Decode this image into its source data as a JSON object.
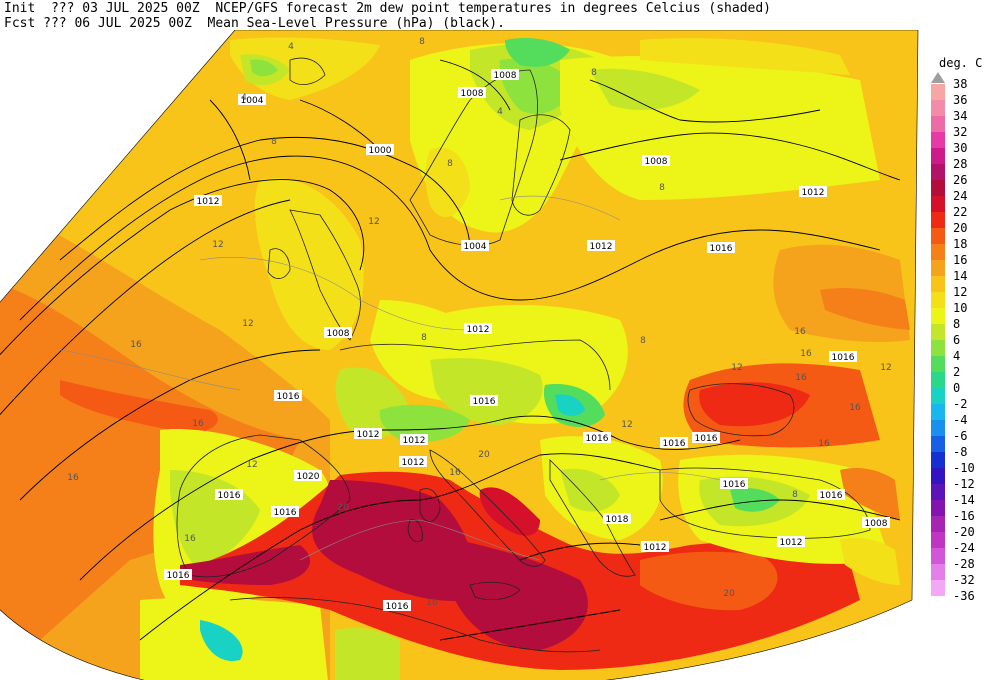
{
  "header": {
    "line1": "Init  ??? 03 JUL 2025 00Z  NCEP/GFS forecast 2m dew point temperatures in degrees Celcius (shaded)",
    "line2": "Fcst ??? 06 JUL 2025 00Z  Mean Sea-Level Pressure (hPa) (black)."
  },
  "legend": {
    "unit": "deg. C",
    "entries": [
      {
        "label": "38",
        "color": "#9e9e9e"
      },
      {
        "label": "36",
        "color": "#f7a6a6"
      },
      {
        "label": "34",
        "color": "#f28ca8"
      },
      {
        "label": "32",
        "color": "#ec6ca8"
      },
      {
        "label": "30",
        "color": "#e63aa6"
      },
      {
        "label": "28",
        "color": "#cf1a8c"
      },
      {
        "label": "26",
        "color": "#b3126a"
      },
      {
        "label": "24",
        "color": "#b20d3c"
      },
      {
        "label": "22",
        "color": "#d4102a"
      },
      {
        "label": "20",
        "color": "#ee2a14"
      },
      {
        "label": "18",
        "color": "#f55a14"
      },
      {
        "label": "16",
        "color": "#f5801a"
      },
      {
        "label": "14",
        "color": "#f5a21c"
      },
      {
        "label": "12",
        "color": "#f8c41a"
      },
      {
        "label": "10",
        "color": "#f3e018"
      },
      {
        "label": "8",
        "color": "#ecf418"
      },
      {
        "label": "6",
        "color": "#c4e628"
      },
      {
        "label": "4",
        "color": "#8ee23e"
      },
      {
        "label": "2",
        "color": "#54dc5c"
      },
      {
        "label": "0",
        "color": "#2ad88a"
      },
      {
        "label": "-2",
        "color": "#18d2c4"
      },
      {
        "label": "-4",
        "color": "#18b8ee"
      },
      {
        "label": "-6",
        "color": "#1890ee"
      },
      {
        "label": "-8",
        "color": "#1660e6"
      },
      {
        "label": "-10",
        "color": "#1430d2"
      },
      {
        "label": "-12",
        "color": "#3214c2"
      },
      {
        "label": "-14",
        "color": "#5a14b8"
      },
      {
        "label": "-16",
        "color": "#8414b0"
      },
      {
        "label": "-20",
        "color": "#a624b2"
      },
      {
        "label": "-24",
        "color": "#c036c2"
      },
      {
        "label": "-28",
        "color": "#d256d8"
      },
      {
        "label": "-32",
        "color": "#e47ee8"
      },
      {
        "label": "-36",
        "color": "#f2a8f4"
      }
    ]
  },
  "map": {
    "pressure_labels": [
      {
        "text": "1004"
      },
      {
        "text": "1000"
      },
      {
        "text": "1012"
      },
      {
        "text": "1008"
      },
      {
        "text": "1004"
      },
      {
        "text": "1012"
      },
      {
        "text": "1012"
      },
      {
        "text": "1008"
      },
      {
        "text": "1016"
      },
      {
        "text": "1008"
      },
      {
        "text": "1012"
      },
      {
        "text": "1016"
      },
      {
        "text": "1016"
      },
      {
        "text": "1012"
      },
      {
        "text": "1012"
      },
      {
        "text": "1012"
      },
      {
        "text": "1016"
      },
      {
        "text": "1016"
      },
      {
        "text": "1016"
      },
      {
        "text": "1016"
      },
      {
        "text": "1020"
      },
      {
        "text": "1016"
      },
      {
        "text": "1016"
      },
      {
        "text": "1016"
      },
      {
        "text": "1016"
      },
      {
        "text": "1016"
      },
      {
        "text": "1018"
      },
      {
        "text": "1012"
      },
      {
        "text": "1012"
      },
      {
        "text": "1016"
      },
      {
        "text": "1008"
      },
      {
        "text": "1008"
      }
    ],
    "dewpoint_labels": [
      {
        "text": "4"
      },
      {
        "text": "4"
      },
      {
        "text": "8"
      },
      {
        "text": "8"
      },
      {
        "text": "8"
      },
      {
        "text": "4"
      },
      {
        "text": "12"
      },
      {
        "text": "12"
      },
      {
        "text": "12"
      },
      {
        "text": "8"
      },
      {
        "text": "8"
      },
      {
        "text": "16"
      },
      {
        "text": "16"
      },
      {
        "text": "16"
      },
      {
        "text": "12"
      },
      {
        "text": "16"
      },
      {
        "text": "16"
      },
      {
        "text": "16"
      },
      {
        "text": "16"
      },
      {
        "text": "12"
      },
      {
        "text": "20"
      },
      {
        "text": "20"
      },
      {
        "text": "16"
      },
      {
        "text": "8"
      },
      {
        "text": "12"
      },
      {
        "text": "8"
      },
      {
        "text": "16"
      },
      {
        "text": "16"
      },
      {
        "text": "16"
      },
      {
        "text": "12"
      },
      {
        "text": "8"
      },
      {
        "text": "20"
      }
    ]
  }
}
